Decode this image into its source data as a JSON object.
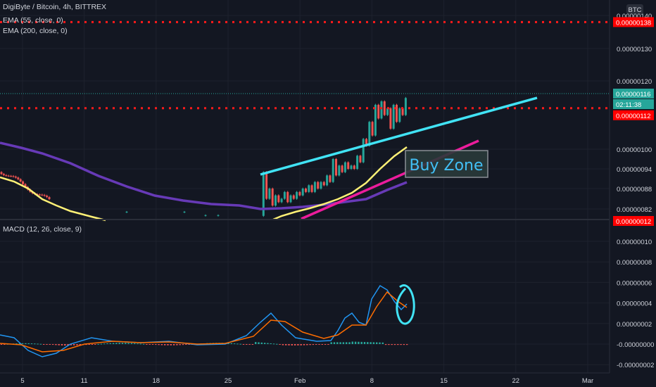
{
  "title": "DigiByte / Bitcoin, 4h, BITTREX",
  "indicators": [
    "EMA (55, close, 0)",
    "EMA (200, close, 0)"
  ],
  "macd_label": "MACD (12, 26, close, 9)",
  "currency_badge": "BTC",
  "price_ticks": [
    "0.00000140",
    "0.00000130",
    "0.00000120",
    "0.00000100",
    "0.00000094",
    "0.00000088",
    "0.00000082"
  ],
  "macd_ticks": [
    "0.00000010",
    "0.00000008",
    "0.00000006",
    "0.00000004",
    "0.00000002",
    "-0.00000000",
    "-0.00000002"
  ],
  "price_tags": {
    "resistance_high": "0.00000138",
    "current": "0.00000116",
    "countdown": "02:11:38",
    "support": "0.00000112",
    "bottom_cut": "0.00000012"
  },
  "buy_zone_label": "Buy Zone",
  "colors": {
    "background": "#131722",
    "up": "#26a69a",
    "down": "#ef5350",
    "ema55": "#fff176",
    "ema200": "#673ab7",
    "trend_upper": "#41e3f5",
    "trend_lower": "#ec1c9c",
    "dotted": "#ff1a1a",
    "macd": "#2196f3",
    "signal": "#ff6d00"
  },
  "chart_data": {
    "type": "candlestick",
    "title": "DigiByte / Bitcoin, 4h, BITTREX",
    "x_ticks": [
      "5",
      "11",
      "18",
      "25",
      "Feb",
      "8",
      "15",
      "22",
      "Mar"
    ],
    "y_unit": "BTC",
    "price_range": [
      8e-07,
      1.4e-06
    ],
    "ema55": [
      [
        4,
        9.3e-07
      ],
      [
        6,
        9e-07
      ],
      [
        8,
        8.6e-07
      ],
      [
        10,
        8.3e-07
      ],
      [
        12,
        8.1e-07
      ],
      [
        20,
        7.6e-07
      ],
      [
        30,
        7.8e-07
      ],
      [
        33,
        8.2e-07
      ],
      [
        37,
        8.7e-07
      ],
      [
        39,
        9.2e-07
      ],
      [
        41,
        9.7e-07
      ],
      [
        42,
        1e-06
      ]
    ],
    "ema200": [
      [
        4,
        1.01e-06
      ],
      [
        10,
        9.6e-07
      ],
      [
        17,
        9e-07
      ],
      [
        24,
        8.3e-07
      ],
      [
        28,
        8.2e-07
      ],
      [
        30,
        8.3e-07
      ],
      [
        35,
        8.4e-07
      ],
      [
        39,
        8.7e-07
      ],
      [
        42,
        8.9e-07
      ]
    ],
    "annotations": [
      {
        "type": "trendline",
        "color": "cyan",
        "from": [
          "Jan 28",
          9.3e-07
        ],
        "to": [
          "Feb 21",
          1.17e-06
        ]
      },
      {
        "type": "trendline",
        "color": "magenta",
        "from": [
          "Jan 29",
          8e-07
        ],
        "to": [
          "Feb 18",
          1.03e-06
        ]
      },
      {
        "type": "horizontal",
        "style": "dotted",
        "value": 1.38e-06
      },
      {
        "type": "horizontal",
        "style": "dotted",
        "value": 1.12e-06
      },
      {
        "type": "label",
        "text": "Buy Zone"
      }
    ],
    "macd": {
      "fast": 12,
      "slow": 26,
      "signal": 9,
      "range": [
        -2.4e-08,
        1.04e-07
      ]
    }
  }
}
